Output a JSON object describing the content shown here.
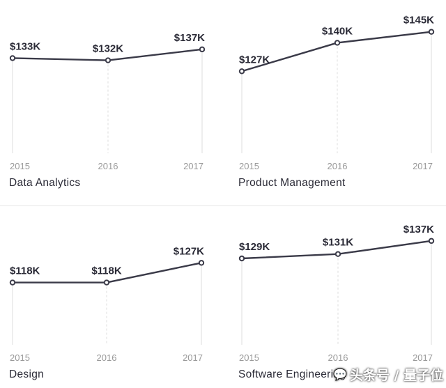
{
  "chart_data": [
    {
      "type": "line",
      "title": "Data Analytics",
      "categories": [
        "2015",
        "2016",
        "2017"
      ],
      "values": [
        133,
        132,
        137
      ],
      "labels": [
        "$133K",
        "$132K",
        "$137K"
      ],
      "unit": "$K"
    },
    {
      "type": "line",
      "title": "Product Management",
      "categories": [
        "2015",
        "2016",
        "2017"
      ],
      "values": [
        127,
        140,
        145
      ],
      "labels": [
        "$127K",
        "$140K",
        "$145K"
      ],
      "unit": "$K"
    },
    {
      "type": "line",
      "title": "Design",
      "categories": [
        "2015",
        "2016",
        "2017"
      ],
      "values": [
        118,
        118,
        127
      ],
      "labels": [
        "$118K",
        "$118K",
        "$127K"
      ],
      "unit": "$K"
    },
    {
      "type": "line",
      "title": "Software Engineering",
      "categories": [
        "2015",
        "2016",
        "2017"
      ],
      "values": [
        129,
        131,
        137
      ],
      "labels": [
        "$129K",
        "$131K",
        "$137K"
      ],
      "unit": "$K"
    }
  ],
  "watermark": {
    "text": "头条号 / 量子位",
    "icon": "wechat-icon"
  },
  "colors": {
    "line": "#3a3a48",
    "grid": "#dddddd",
    "tick": "#999999",
    "label": "#2a2a36"
  }
}
